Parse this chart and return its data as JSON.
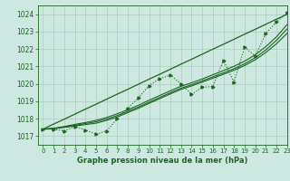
{
  "title": "Graphe pression niveau de la mer (hPa)",
  "bg_color": "#cce8e0",
  "grid_color": "#aaccbb",
  "line_color": "#1a6620",
  "xlim": [
    -0.5,
    23
  ],
  "ylim": [
    1016.5,
    1024.5
  ],
  "yticks": [
    1017,
    1018,
    1019,
    1020,
    1021,
    1022,
    1023,
    1024
  ],
  "xticks": [
    0,
    1,
    2,
    3,
    4,
    5,
    6,
    7,
    8,
    9,
    10,
    11,
    12,
    13,
    14,
    15,
    16,
    17,
    18,
    19,
    20,
    21,
    22,
    23
  ],
  "main_x": [
    0,
    1,
    2,
    3,
    4,
    5,
    6,
    7,
    8,
    9,
    10,
    11,
    12,
    13,
    14,
    15,
    16,
    17,
    18,
    19,
    20,
    21,
    22,
    23
  ],
  "main_y": [
    1017.4,
    1017.4,
    1017.3,
    1017.55,
    1017.35,
    1017.1,
    1017.3,
    1018.0,
    1018.6,
    1019.2,
    1019.9,
    1020.3,
    1020.5,
    1020.0,
    1019.4,
    1019.8,
    1019.85,
    1021.35,
    1020.1,
    1022.1,
    1021.6,
    1022.9,
    1023.55,
    1024.1
  ],
  "smooth_y1": [
    1017.4,
    1017.42,
    1017.5,
    1017.58,
    1017.66,
    1017.74,
    1017.9,
    1018.1,
    1018.35,
    1018.6,
    1018.88,
    1019.15,
    1019.42,
    1019.68,
    1019.88,
    1020.1,
    1020.32,
    1020.55,
    1020.78,
    1021.05,
    1021.38,
    1021.8,
    1022.3,
    1022.9
  ],
  "smooth_y2": [
    1017.4,
    1017.43,
    1017.52,
    1017.62,
    1017.72,
    1017.82,
    1017.98,
    1018.18,
    1018.42,
    1018.67,
    1018.95,
    1019.22,
    1019.49,
    1019.75,
    1019.95,
    1020.17,
    1020.4,
    1020.63,
    1020.87,
    1021.15,
    1021.5,
    1021.95,
    1022.5,
    1023.15
  ],
  "smooth_y3": [
    1017.4,
    1017.45,
    1017.55,
    1017.67,
    1017.78,
    1017.9,
    1018.07,
    1018.28,
    1018.52,
    1018.77,
    1019.06,
    1019.33,
    1019.6,
    1019.86,
    1020.06,
    1020.28,
    1020.52,
    1020.76,
    1021.01,
    1021.3,
    1021.67,
    1022.14,
    1022.7,
    1023.4
  ],
  "linear_y": [
    1017.4,
    1017.69,
    1017.97,
    1018.26,
    1018.55,
    1018.83,
    1019.12,
    1019.41,
    1019.69,
    1019.98,
    1020.27,
    1020.55,
    1020.84,
    1021.13,
    1021.41,
    1021.7,
    1021.99,
    1022.27,
    1022.56,
    1022.85,
    1023.13,
    1023.42,
    1023.71,
    1023.99
  ]
}
